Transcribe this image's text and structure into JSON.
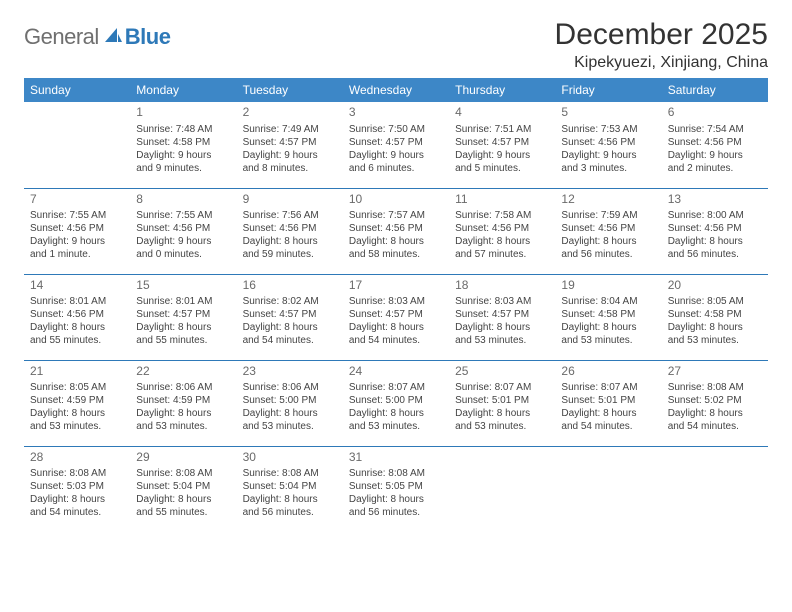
{
  "logo": {
    "general": "General",
    "blue": "Blue"
  },
  "title": "December 2025",
  "location": "Kipekyuezi, Xinjiang, China",
  "colors": {
    "header_bg": "#3d87c7",
    "header_text": "#ffffff",
    "border": "#2e79b8",
    "logo_gray": "#6f6f6f",
    "logo_blue": "#2e79b8"
  },
  "weekdays": [
    "Sunday",
    "Monday",
    "Tuesday",
    "Wednesday",
    "Thursday",
    "Friday",
    "Saturday"
  ],
  "weeks": [
    [
      null,
      {
        "n": "1",
        "sr": "Sunrise: 7:48 AM",
        "ss": "Sunset: 4:58 PM",
        "dl": "Daylight: 9 hours and 9 minutes."
      },
      {
        "n": "2",
        "sr": "Sunrise: 7:49 AM",
        "ss": "Sunset: 4:57 PM",
        "dl": "Daylight: 9 hours and 8 minutes."
      },
      {
        "n": "3",
        "sr": "Sunrise: 7:50 AM",
        "ss": "Sunset: 4:57 PM",
        "dl": "Daylight: 9 hours and 6 minutes."
      },
      {
        "n": "4",
        "sr": "Sunrise: 7:51 AM",
        "ss": "Sunset: 4:57 PM",
        "dl": "Daylight: 9 hours and 5 minutes."
      },
      {
        "n": "5",
        "sr": "Sunrise: 7:53 AM",
        "ss": "Sunset: 4:56 PM",
        "dl": "Daylight: 9 hours and 3 minutes."
      },
      {
        "n": "6",
        "sr": "Sunrise: 7:54 AM",
        "ss": "Sunset: 4:56 PM",
        "dl": "Daylight: 9 hours and 2 minutes."
      }
    ],
    [
      {
        "n": "7",
        "sr": "Sunrise: 7:55 AM",
        "ss": "Sunset: 4:56 PM",
        "dl": "Daylight: 9 hours and 1 minute."
      },
      {
        "n": "8",
        "sr": "Sunrise: 7:55 AM",
        "ss": "Sunset: 4:56 PM",
        "dl": "Daylight: 9 hours and 0 minutes."
      },
      {
        "n": "9",
        "sr": "Sunrise: 7:56 AM",
        "ss": "Sunset: 4:56 PM",
        "dl": "Daylight: 8 hours and 59 minutes."
      },
      {
        "n": "10",
        "sr": "Sunrise: 7:57 AM",
        "ss": "Sunset: 4:56 PM",
        "dl": "Daylight: 8 hours and 58 minutes."
      },
      {
        "n": "11",
        "sr": "Sunrise: 7:58 AM",
        "ss": "Sunset: 4:56 PM",
        "dl": "Daylight: 8 hours and 57 minutes."
      },
      {
        "n": "12",
        "sr": "Sunrise: 7:59 AM",
        "ss": "Sunset: 4:56 PM",
        "dl": "Daylight: 8 hours and 56 minutes."
      },
      {
        "n": "13",
        "sr": "Sunrise: 8:00 AM",
        "ss": "Sunset: 4:56 PM",
        "dl": "Daylight: 8 hours and 56 minutes."
      }
    ],
    [
      {
        "n": "14",
        "sr": "Sunrise: 8:01 AM",
        "ss": "Sunset: 4:56 PM",
        "dl": "Daylight: 8 hours and 55 minutes."
      },
      {
        "n": "15",
        "sr": "Sunrise: 8:01 AM",
        "ss": "Sunset: 4:57 PM",
        "dl": "Daylight: 8 hours and 55 minutes."
      },
      {
        "n": "16",
        "sr": "Sunrise: 8:02 AM",
        "ss": "Sunset: 4:57 PM",
        "dl": "Daylight: 8 hours and 54 minutes."
      },
      {
        "n": "17",
        "sr": "Sunrise: 8:03 AM",
        "ss": "Sunset: 4:57 PM",
        "dl": "Daylight: 8 hours and 54 minutes."
      },
      {
        "n": "18",
        "sr": "Sunrise: 8:03 AM",
        "ss": "Sunset: 4:57 PM",
        "dl": "Daylight: 8 hours and 53 minutes."
      },
      {
        "n": "19",
        "sr": "Sunrise: 8:04 AM",
        "ss": "Sunset: 4:58 PM",
        "dl": "Daylight: 8 hours and 53 minutes."
      },
      {
        "n": "20",
        "sr": "Sunrise: 8:05 AM",
        "ss": "Sunset: 4:58 PM",
        "dl": "Daylight: 8 hours and 53 minutes."
      }
    ],
    [
      {
        "n": "21",
        "sr": "Sunrise: 8:05 AM",
        "ss": "Sunset: 4:59 PM",
        "dl": "Daylight: 8 hours and 53 minutes."
      },
      {
        "n": "22",
        "sr": "Sunrise: 8:06 AM",
        "ss": "Sunset: 4:59 PM",
        "dl": "Daylight: 8 hours and 53 minutes."
      },
      {
        "n": "23",
        "sr": "Sunrise: 8:06 AM",
        "ss": "Sunset: 5:00 PM",
        "dl": "Daylight: 8 hours and 53 minutes."
      },
      {
        "n": "24",
        "sr": "Sunrise: 8:07 AM",
        "ss": "Sunset: 5:00 PM",
        "dl": "Daylight: 8 hours and 53 minutes."
      },
      {
        "n": "25",
        "sr": "Sunrise: 8:07 AM",
        "ss": "Sunset: 5:01 PM",
        "dl": "Daylight: 8 hours and 53 minutes."
      },
      {
        "n": "26",
        "sr": "Sunrise: 8:07 AM",
        "ss": "Sunset: 5:01 PM",
        "dl": "Daylight: 8 hours and 54 minutes."
      },
      {
        "n": "27",
        "sr": "Sunrise: 8:08 AM",
        "ss": "Sunset: 5:02 PM",
        "dl": "Daylight: 8 hours and 54 minutes."
      }
    ],
    [
      {
        "n": "28",
        "sr": "Sunrise: 8:08 AM",
        "ss": "Sunset: 5:03 PM",
        "dl": "Daylight: 8 hours and 54 minutes."
      },
      {
        "n": "29",
        "sr": "Sunrise: 8:08 AM",
        "ss": "Sunset: 5:04 PM",
        "dl": "Daylight: 8 hours and 55 minutes."
      },
      {
        "n": "30",
        "sr": "Sunrise: 8:08 AM",
        "ss": "Sunset: 5:04 PM",
        "dl": "Daylight: 8 hours and 56 minutes."
      },
      {
        "n": "31",
        "sr": "Sunrise: 8:08 AM",
        "ss": "Sunset: 5:05 PM",
        "dl": "Daylight: 8 hours and 56 minutes."
      },
      null,
      null,
      null
    ]
  ]
}
